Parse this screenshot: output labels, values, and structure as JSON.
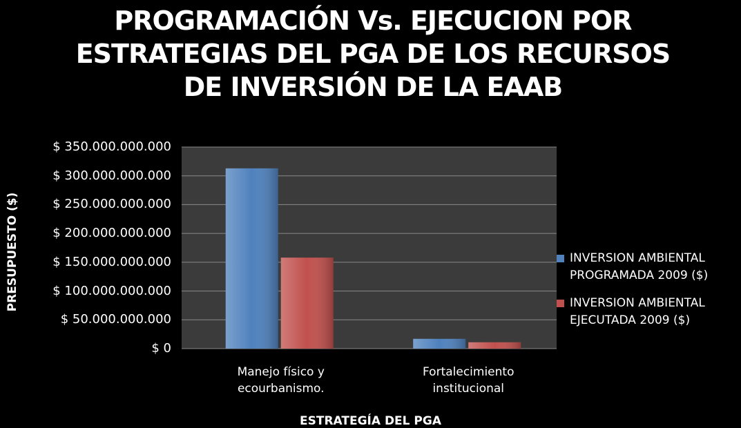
{
  "chart_data": {
    "type": "bar",
    "title": "PROGRAMACIÓN Vs. EJECUCION POR ESTRATEGIAS DEL PGA DE LOS RECURSOS DE INVERSIÓN DE LA EAAB",
    "x_label": "ESTRATEGÍA DEL PGA",
    "y_label": "PRESUPUESTO ($)",
    "categories": [
      "Manejo físico y ecourbanismo.",
      "Fortalecimiento institucional"
    ],
    "series": [
      {
        "name": "INVERSION AMBIENTAL PROGRAMADA 2009 ($)",
        "color": "#4f81bd",
        "values": [
          313000000000,
          17000000000
        ]
      },
      {
        "name": "INVERSION AMBIENTAL EJECUTADA 2009  ($)",
        "color": "#c0504d",
        "values": [
          158000000000,
          11000000000
        ]
      }
    ],
    "ylim": [
      0,
      350000000000
    ],
    "yticks": [
      {
        "value": 0,
        "label": "$ 0"
      },
      {
        "value": 50000000000,
        "label": "$ 50.000.000.000"
      },
      {
        "value": 100000000000,
        "label": "$ 100.000.000.000"
      },
      {
        "value": 150000000000,
        "label": "$ 150.000.000.000"
      },
      {
        "value": 200000000000,
        "label": "$ 200.000.000.000"
      },
      {
        "value": 250000000000,
        "label": "$ 250.000.000.000"
      },
      {
        "value": 300000000000,
        "label": "$ 300.000.000.000"
      },
      {
        "value": 350000000000,
        "label": "$ 350.000.000.000"
      }
    ],
    "grid": true,
    "legend": "right"
  }
}
